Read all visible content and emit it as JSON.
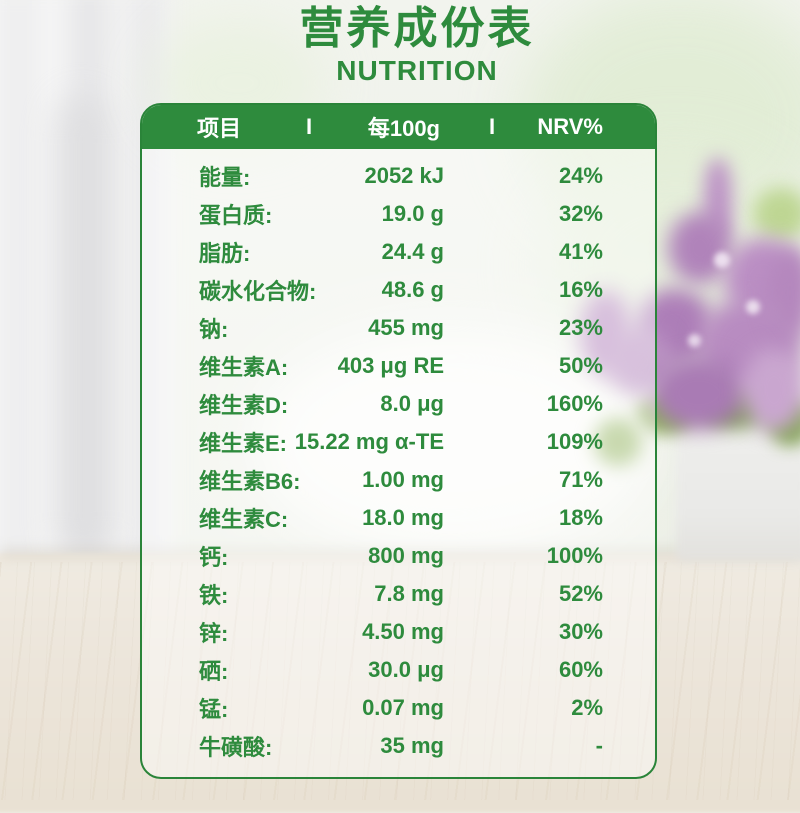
{
  "colors": {
    "green": "#2e8b3d",
    "header_text": "#ffffff"
  },
  "page": {
    "title": "营养成份表",
    "subtitle": "NUTRITION"
  },
  "table": {
    "header": {
      "item": "项目",
      "separator": "I",
      "per_100g": "每100g",
      "nrv": "NRV%"
    },
    "rows": [
      {
        "label": "能量:",
        "value": "2052 kJ",
        "nrv": "24%"
      },
      {
        "label": "蛋白质:",
        "value": "19.0 g",
        "nrv": "32%"
      },
      {
        "label": "脂肪:",
        "value": "24.4 g",
        "nrv": "41%"
      },
      {
        "label": "碳水化合物:",
        "value": "48.6 g",
        "nrv": "16%"
      },
      {
        "label": "钠:",
        "value": "455 mg",
        "nrv": "23%"
      },
      {
        "label": "维生素A:",
        "value": "403 μg RE",
        "nrv": "50%"
      },
      {
        "label": "维生素D:",
        "value": "8.0 μg",
        "nrv": "160%"
      },
      {
        "label": "维生素E:",
        "value": "15.22 mg α-TE",
        "nrv": "109%"
      },
      {
        "label": "维生素B6:",
        "value": "1.00 mg",
        "nrv": "71%"
      },
      {
        "label": "维生素C:",
        "value": "18.0 mg",
        "nrv": "18%"
      },
      {
        "label": "钙:",
        "value": "800 mg",
        "nrv": "100%"
      },
      {
        "label": "铁:",
        "value": "7.8 mg",
        "nrv": "52%"
      },
      {
        "label": "锌:",
        "value": "4.50 mg",
        "nrv": "30%"
      },
      {
        "label": "硒:",
        "value": "30.0 μg",
        "nrv": "60%"
      },
      {
        "label": "锰:",
        "value": "0.07 mg",
        "nrv": "2%"
      },
      {
        "label": "牛磺酸:",
        "value": "35 mg",
        "nrv": "-"
      }
    ]
  }
}
